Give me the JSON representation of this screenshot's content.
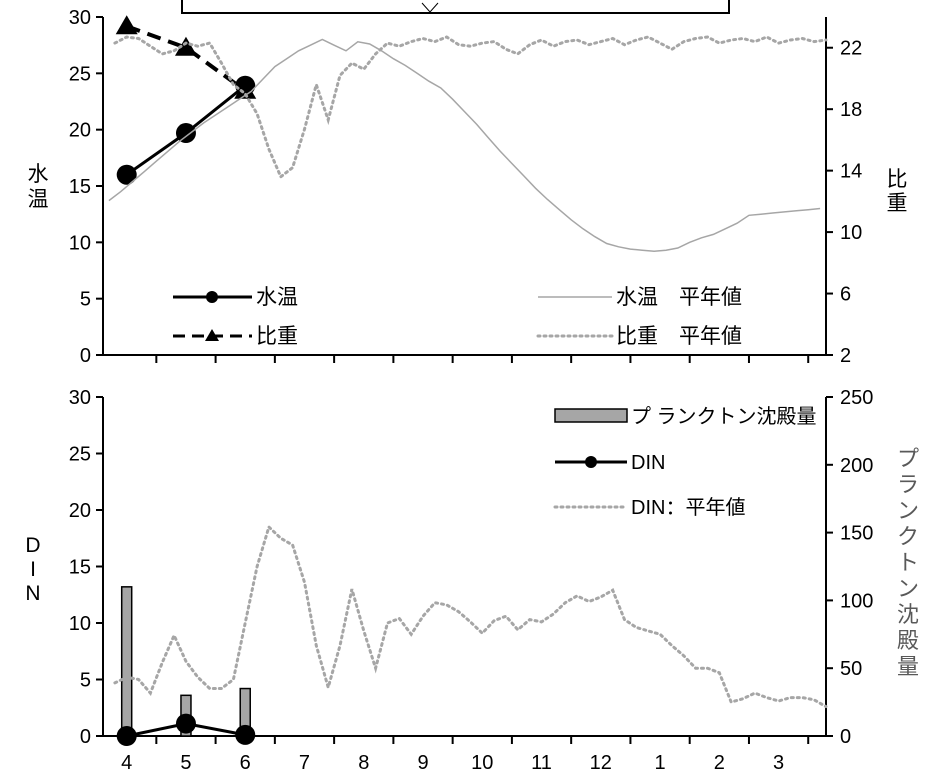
{
  "chart_data": [
    {
      "type": "line",
      "y_axis_left": {
        "label": "水温",
        "ylim": [
          0,
          30
        ],
        "ticks": [
          0,
          5,
          10,
          15,
          20,
          25,
          30
        ]
      },
      "y_axis_right": {
        "label": "比重",
        "ylim": [
          2,
          24
        ],
        "ticks": [
          2,
          6,
          10,
          14,
          18,
          22
        ]
      },
      "series": [
        {
          "name": "水温",
          "axis": "left",
          "style": "solid-marker-circle",
          "color": "#000000",
          "x": [
            4.0,
            5.0,
            6.0
          ],
          "values": [
            16.0,
            19.7,
            23.9
          ]
        },
        {
          "name": "比重",
          "axis": "right",
          "style": "dashed-marker-triangle",
          "color": "#000000",
          "x": [
            4.0,
            5.0,
            6.0
          ],
          "values": [
            23.4,
            22.0,
            19.2
          ]
        },
        {
          "name": "水温　平年値",
          "axis": "left",
          "style": "thin-solid",
          "color": "#a6a6a6",
          "x": [
            3.7,
            3.9,
            4.1,
            4.3,
            4.5,
            4.7,
            4.9,
            5.1,
            5.3,
            5.5,
            5.7,
            5.9,
            6.1,
            6.3,
            6.5,
            6.7,
            6.9,
            7.1,
            7.3,
            7.5,
            7.7,
            7.9,
            8.1,
            8.3,
            8.5,
            8.7,
            8.9,
            9.1,
            9.3,
            9.5,
            9.7,
            9.9,
            10.1,
            10.3,
            10.5,
            10.7,
            10.9,
            11.1,
            11.3,
            11.5,
            11.7,
            11.9,
            12.1,
            12.3,
            12.5,
            12.7,
            12.9,
            13.1,
            13.3,
            13.5,
            13.7,
            13.9,
            14.1,
            14.3,
            14.5,
            14.7,
            14.9,
            15.1,
            15.3,
            15.5,
            15.7
          ],
          "values": [
            13.7,
            14.5,
            15.4,
            16.3,
            17.2,
            18.1,
            19.0,
            19.8,
            20.6,
            21.3,
            22.0,
            22.7,
            23.4,
            24.5,
            25.6,
            26.3,
            27.0,
            27.5,
            28.0,
            27.5,
            27.0,
            27.8,
            27.6,
            27.0,
            26.3,
            25.7,
            25.0,
            24.3,
            23.7,
            22.7,
            21.6,
            20.5,
            19.3,
            18.1,
            17.0,
            15.9,
            14.8,
            13.8,
            12.9,
            12.0,
            11.2,
            10.5,
            9.9,
            9.6,
            9.4,
            9.3,
            9.2,
            9.3,
            9.5,
            10.0,
            10.4,
            10.7,
            11.2,
            11.7,
            12.4,
            12.5,
            12.6,
            12.7,
            12.8,
            12.9,
            13.0
          ]
        },
        {
          "name": "比重　平年値",
          "axis": "right",
          "style": "dotted",
          "color": "#a6a6a6",
          "x": [
            3.8,
            4.0,
            4.2,
            4.4,
            4.6,
            4.8,
            5.0,
            5.2,
            5.4,
            5.6,
            5.8,
            6.0,
            6.2,
            6.4,
            6.6,
            6.8,
            7.0,
            7.2,
            7.4,
            7.6,
            7.8,
            8.0,
            8.2,
            8.4,
            8.6,
            8.8,
            9.0,
            9.2,
            9.4,
            9.6,
            9.8,
            10.0,
            10.2,
            10.4,
            10.6,
            10.8,
            11.0,
            11.2,
            11.4,
            11.6,
            11.8,
            12.0,
            12.2,
            12.4,
            12.6,
            12.8,
            13.0,
            13.2,
            13.4,
            13.6,
            13.8,
            14.0,
            14.2,
            14.4,
            14.6,
            14.8,
            15.0,
            15.2,
            15.4,
            15.6,
            15.8
          ],
          "values": [
            22.3,
            22.7,
            22.6,
            22.1,
            21.6,
            21.8,
            22.3,
            22.1,
            22.3,
            21.0,
            19.6,
            19.0,
            17.7,
            15.4,
            13.6,
            14.2,
            16.7,
            19.6,
            17.3,
            20.2,
            21.0,
            20.6,
            21.6,
            22.3,
            22.1,
            22.4,
            22.6,
            22.4,
            22.7,
            22.2,
            22.1,
            22.3,
            22.4,
            21.9,
            21.6,
            22.2,
            22.5,
            22.1,
            22.4,
            22.5,
            22.2,
            22.4,
            22.6,
            22.2,
            22.5,
            22.7,
            22.3,
            21.9,
            22.4,
            22.6,
            22.7,
            22.3,
            22.5,
            22.6,
            22.4,
            22.7,
            22.3,
            22.5,
            22.6,
            22.4,
            22.5
          ]
        }
      ]
    },
    {
      "type": "bar",
      "y_axis_left": {
        "label": "DIN",
        "ylim": [
          0,
          30
        ],
        "ticks": [
          0,
          5,
          10,
          15,
          20,
          25,
          30
        ]
      },
      "y_axis_right": {
        "label": "プランクトン沈殿量",
        "ylim": [
          0,
          250
        ],
        "ticks": [
          0,
          50,
          100,
          150,
          200,
          250
        ],
        "color": "#595959"
      },
      "series": [
        {
          "name": "プ ランクトン沈殿量",
          "axis": "right",
          "type": "bar",
          "color": "#a6a6a6",
          "x": [
            4.0,
            5.0,
            6.0
          ],
          "values": [
            110,
            30,
            35
          ]
        },
        {
          "name": "DIN",
          "axis": "left",
          "type": "line",
          "style": "solid-marker-circle",
          "color": "#000000",
          "x": [
            4.0,
            5.0,
            6.0
          ],
          "values": [
            0.0,
            1.1,
            0.1
          ]
        },
        {
          "name": "DIN：平年値",
          "axis": "left",
          "type": "line",
          "style": "dotted",
          "color": "#a6a6a6",
          "x": [
            3.8,
            4.0,
            4.2,
            4.4,
            4.6,
            4.8,
            5.0,
            5.2,
            5.4,
            5.6,
            5.8,
            6.0,
            6.2,
            6.4,
            6.6,
            6.8,
            7.0,
            7.2,
            7.4,
            7.6,
            7.8,
            8.0,
            8.2,
            8.4,
            8.6,
            8.8,
            9.0,
            9.2,
            9.4,
            9.6,
            9.8,
            10.0,
            10.2,
            10.4,
            10.6,
            10.8,
            11.0,
            11.2,
            11.4,
            11.6,
            11.8,
            12.0,
            12.2,
            12.4,
            12.6,
            12.8,
            13.0,
            13.2,
            13.4,
            13.6,
            13.8,
            14.0,
            14.2,
            14.4,
            14.6,
            14.8,
            15.0,
            15.2,
            15.4,
            15.6,
            15.8
          ],
          "values": [
            4.7,
            5.2,
            5.0,
            3.8,
            6.5,
            8.9,
            6.6,
            5.2,
            4.2,
            4.2,
            5.0,
            10.0,
            15.0,
            18.5,
            17.5,
            16.9,
            13.6,
            8.0,
            4.3,
            8.0,
            13.0,
            9.3,
            6.0,
            10.0,
            10.4,
            9.0,
            10.6,
            11.8,
            11.6,
            11.0,
            10.1,
            9.1,
            10.2,
            10.6,
            9.4,
            10.3,
            10.1,
            10.8,
            11.8,
            12.4,
            11.9,
            12.3,
            12.9,
            10.3,
            9.6,
            9.3,
            9.0,
            8.0,
            7.1,
            6.0,
            6.0,
            5.6,
            3.0,
            3.3,
            3.8,
            3.4,
            3.1,
            3.4,
            3.4,
            3.2,
            2.6
          ]
        }
      ]
    }
  ],
  "x_axis": {
    "tick_labels": [
      "4",
      "5",
      "6",
      "7",
      "8",
      "9",
      "10",
      "11",
      "12",
      "1",
      "2",
      "3"
    ],
    "xlim": [
      3.6,
      15.8
    ]
  },
  "legend_top": {
    "items": [
      {
        "label": "水温",
        "style": "solid-marker-circle"
      },
      {
        "label": "比重",
        "style": "dashed-marker-triangle"
      },
      {
        "label": "水温　平年値",
        "style": "thin-solid"
      },
      {
        "label": "比重　平年値",
        "style": "dotted"
      }
    ]
  },
  "legend_bottom": {
    "items": [
      {
        "label": "プ ランクトン沈殿量",
        "style": "bar"
      },
      {
        "label": "DIN",
        "style": "solid-marker-circle"
      },
      {
        "label": "DIN：平年値",
        "style": "dotted"
      }
    ]
  }
}
